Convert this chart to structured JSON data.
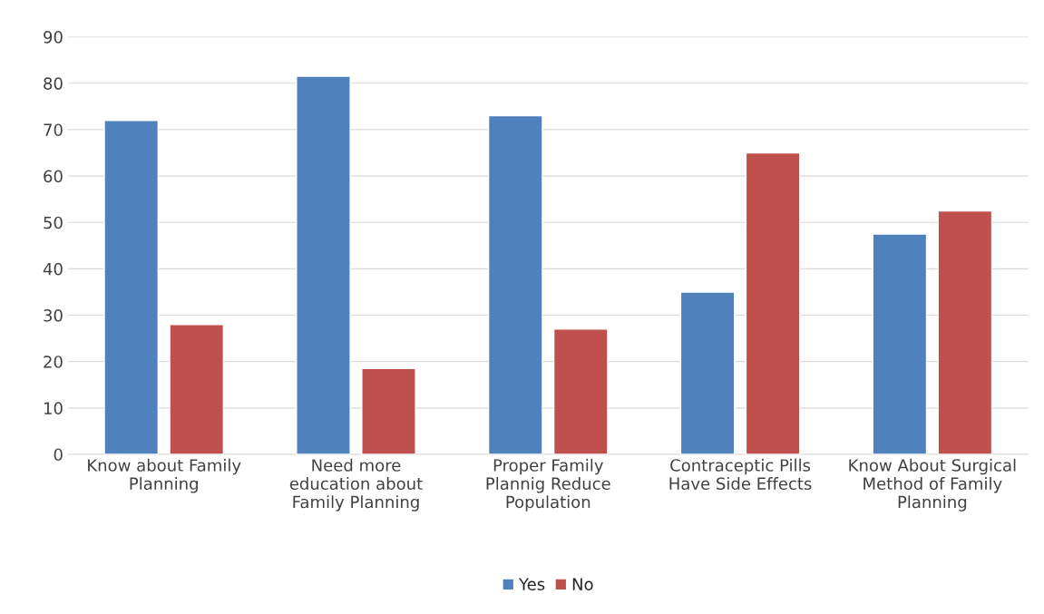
{
  "chart_data": {
    "type": "bar",
    "categories": [
      "Know about Family\nPlanning",
      "Need more\neducation about\nFamily Planning",
      "Proper Family\nPlannig Reduce\nPopulation",
      "Contraceptic Pills\nHave Side Effects",
      "Know About Surgical\nMethod of Family\nPlanning"
    ],
    "series": [
      {
        "name": "Yes",
        "color": "#4f81bd",
        "values": [
          72,
          81.5,
          73,
          35,
          47.5
        ]
      },
      {
        "name": "No",
        "color": "#c0504d",
        "values": [
          28,
          18.5,
          27,
          65,
          52.5
        ]
      }
    ],
    "ylim": [
      0,
      90
    ],
    "yticks": [
      0,
      10,
      20,
      30,
      40,
      50,
      60,
      70,
      80,
      90
    ],
    "grid": "y",
    "legend": "bottom"
  }
}
